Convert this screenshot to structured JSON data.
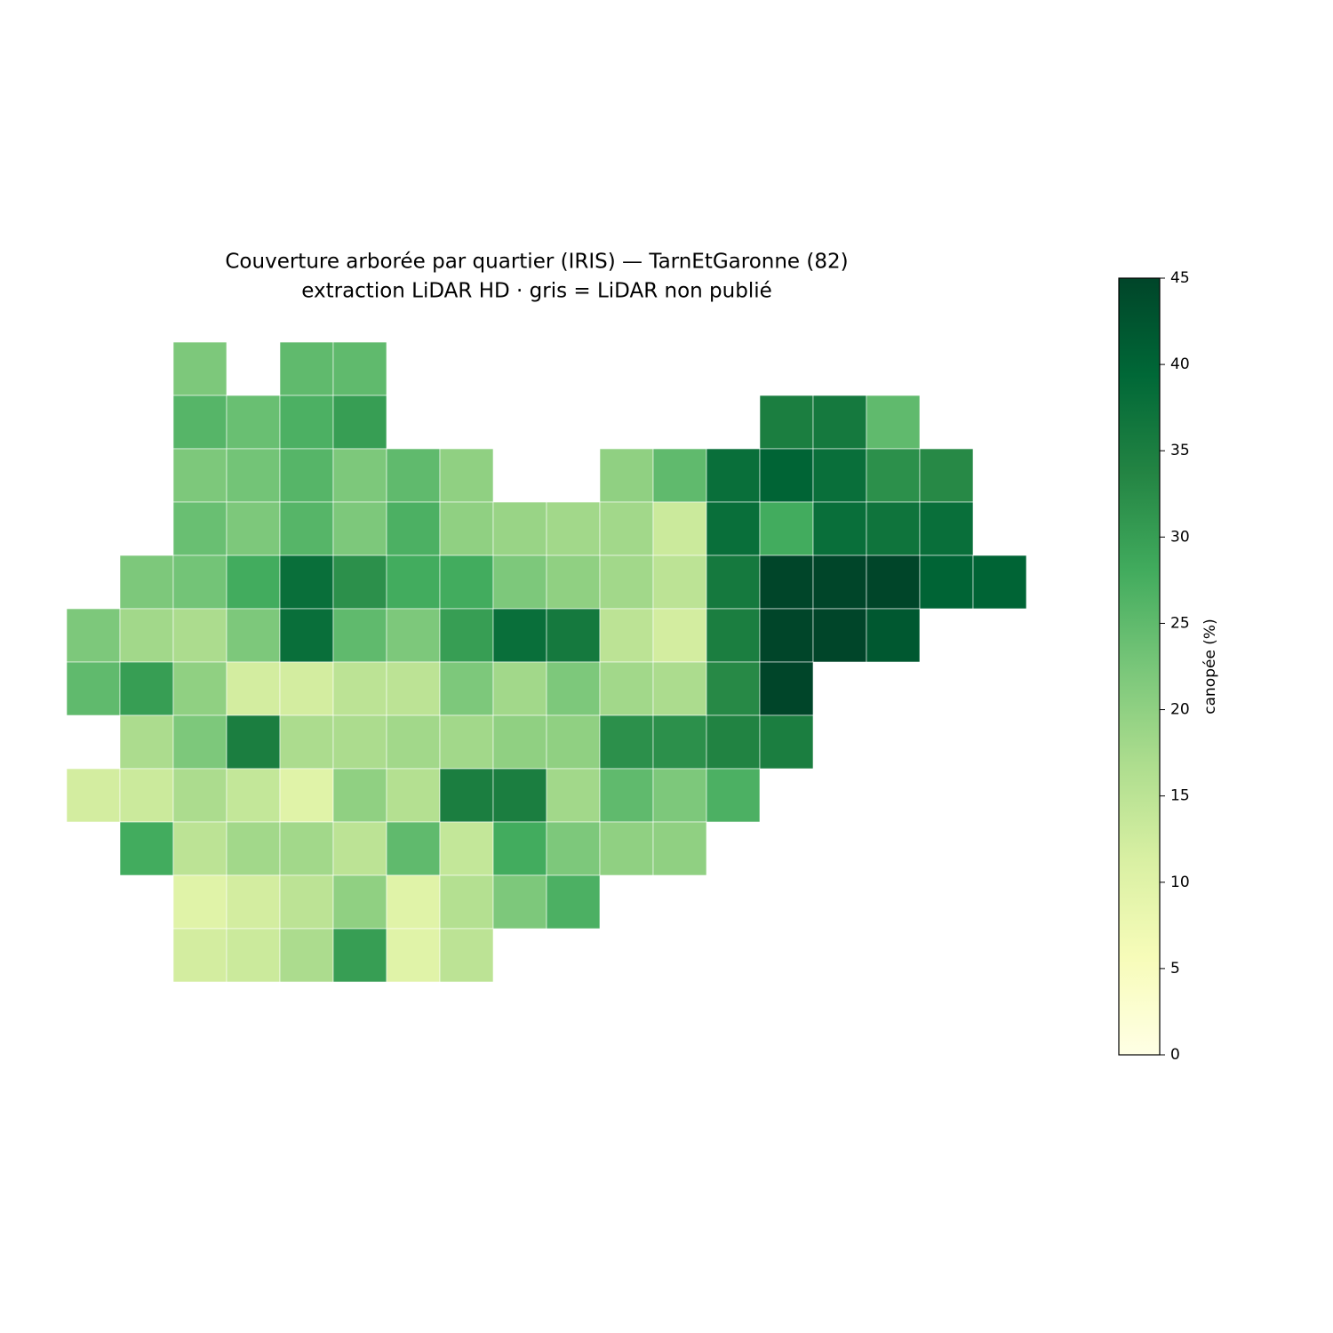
{
  "chart_data": {
    "type": "choropleth",
    "title": "Couverture arborée par quartier (IRIS) — TarnEtGaronne (82)",
    "subtitle": "extraction LiDAR HD · gris = LiDAR non publié",
    "colorbar_label": "canopée (%)",
    "clim": [
      0,
      45
    ],
    "cticks": [
      0,
      5,
      10,
      15,
      20,
      25,
      30,
      35,
      40,
      45
    ],
    "colormap": [
      "#ffffe5",
      "#f7fcb9",
      "#d9f0a3",
      "#addd8e",
      "#78c679",
      "#41ab5d",
      "#238443",
      "#006837",
      "#004529"
    ],
    "canopy_grid": [
      [
        null,
        null,
        22,
        null,
        25,
        25,
        null,
        null,
        null,
        null,
        null,
        null,
        null,
        null,
        null,
        null,
        null,
        null
      ],
      [
        null,
        null,
        26,
        24,
        27,
        30,
        null,
        null,
        null,
        null,
        null,
        null,
        null,
        35,
        36,
        25,
        null,
        null
      ],
      [
        null,
        null,
        22,
        23,
        26,
        22,
        25,
        20,
        null,
        null,
        20,
        25,
        38,
        40,
        38,
        32,
        33,
        null
      ],
      [
        null,
        null,
        24,
        22,
        26,
        22,
        27,
        20,
        19,
        18,
        18,
        13,
        38,
        28,
        38,
        37,
        38,
        null
      ],
      [
        null,
        22,
        23,
        28,
        38,
        32,
        28,
        28,
        22,
        20,
        18,
        15,
        36,
        45,
        45,
        45,
        40,
        40
      ],
      [
        22,
        18,
        17,
        22,
        38,
        25,
        22,
        30,
        38,
        36,
        15,
        12,
        35,
        45,
        45,
        42,
        null,
        null
      ],
      [
        25,
        30,
        20,
        12,
        12,
        15,
        15,
        22,
        18,
        22,
        18,
        17,
        33,
        45,
        null,
        null,
        null,
        null
      ],
      [
        null,
        17,
        22,
        35,
        17,
        17,
        18,
        18,
        20,
        20,
        32,
        32,
        34,
        35,
        null,
        null,
        null,
        null
      ],
      [
        12,
        13,
        17,
        14,
        10,
        20,
        16,
        35,
        35,
        18,
        25,
        22,
        27,
        null,
        null,
        null,
        null,
        null
      ],
      [
        null,
        28,
        15,
        18,
        18,
        15,
        25,
        14,
        28,
        22,
        20,
        20,
        null,
        null,
        null,
        null,
        null,
        null
      ],
      [
        null,
        null,
        10,
        12,
        15,
        20,
        10,
        16,
        22,
        27,
        null,
        null,
        null,
        null,
        null,
        null,
        null,
        null
      ],
      [
        null,
        null,
        12,
        13,
        17,
        30,
        10,
        15,
        null,
        null,
        null,
        null,
        null,
        null,
        null,
        null,
        null,
        null
      ]
    ]
  }
}
